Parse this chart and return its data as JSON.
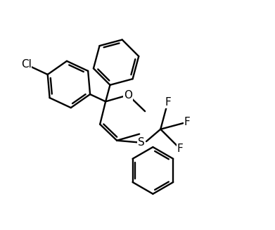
{
  "bg_color": "#ffffff",
  "line_color": "#000000",
  "lw": 1.7,
  "fig_width": 3.91,
  "fig_height": 3.27,
  "dpi": 100,
  "fontsize": 11,
  "xlim": [
    -1.8,
    2.3
  ],
  "ylim": [
    -1.85,
    1.85
  ]
}
